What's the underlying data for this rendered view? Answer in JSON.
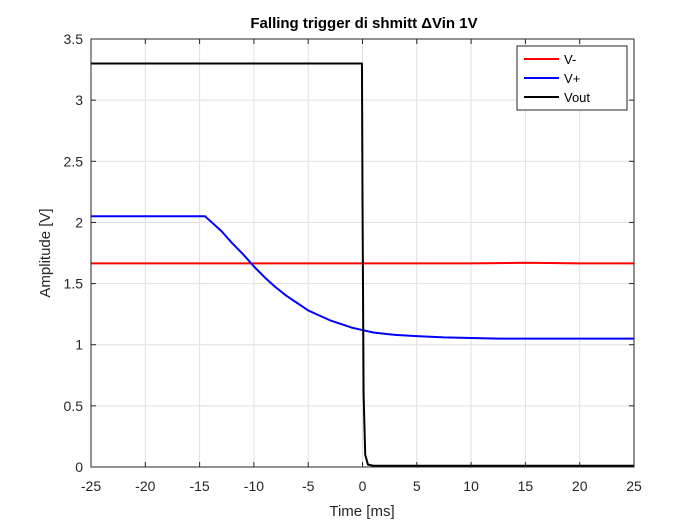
{
  "chart_data": {
    "type": "line",
    "title": "Falling trigger di shmitt ΔVin 1V",
    "xlabel": "Time [ms]",
    "ylabel": "Amplitude [V]",
    "xlim": [
      -25,
      25
    ],
    "ylim": [
      0,
      3.5
    ],
    "xticks": [
      -25,
      -20,
      -15,
      -10,
      -5,
      0,
      5,
      10,
      15,
      20,
      25
    ],
    "xtick_labels": [
      "-25",
      "-20",
      "-15",
      "-10",
      "-5",
      "0",
      "5",
      "10",
      "15",
      "20",
      "25"
    ],
    "yticks": [
      0,
      0.5,
      1,
      1.5,
      2,
      2.5,
      3,
      3.5
    ],
    "ytick_labels": [
      "0",
      "0.5",
      "1",
      "1.5",
      "2",
      "2.5",
      "3",
      "3.5"
    ],
    "grid": true,
    "legend_position": "top-right",
    "series": [
      {
        "name": "V-",
        "color": "#ff0000",
        "x": [
          -25,
          -20,
          -15,
          -10,
          -5,
          0,
          5,
          10,
          15,
          20,
          25
        ],
        "y": [
          1.665,
          1.665,
          1.665,
          1.665,
          1.665,
          1.665,
          1.665,
          1.665,
          1.67,
          1.665,
          1.665
        ]
      },
      {
        "name": "V+",
        "color": "#0000ff",
        "x": [
          -25,
          -20,
          -15,
          -14.5,
          -13,
          -12,
          -11,
          -10,
          -9,
          -8,
          -7,
          -6,
          -5,
          -4,
          -3,
          -2,
          -1,
          0,
          1,
          2,
          3,
          4,
          5,
          7.5,
          10,
          12.5,
          15,
          17.5,
          20,
          22.5,
          25
        ],
        "y": [
          2.05,
          2.05,
          2.05,
          2.05,
          1.93,
          1.83,
          1.74,
          1.64,
          1.55,
          1.47,
          1.4,
          1.34,
          1.28,
          1.24,
          1.2,
          1.17,
          1.14,
          1.12,
          1.1,
          1.09,
          1.08,
          1.075,
          1.07,
          1.06,
          1.055,
          1.05,
          1.05,
          1.05,
          1.05,
          1.05,
          1.05
        ]
      },
      {
        "name": "Vout",
        "color": "#000000",
        "x": [
          -25,
          -20,
          -15,
          -10,
          -5,
          -0.05,
          0,
          0.1,
          0.25,
          0.5,
          1,
          5,
          10,
          15,
          20,
          25
        ],
        "y": [
          3.3,
          3.3,
          3.3,
          3.3,
          3.3,
          3.3,
          2.2,
          0.6,
          0.1,
          0.02,
          0.01,
          0.01,
          0.01,
          0.01,
          0.01,
          0.01
        ]
      }
    ]
  }
}
